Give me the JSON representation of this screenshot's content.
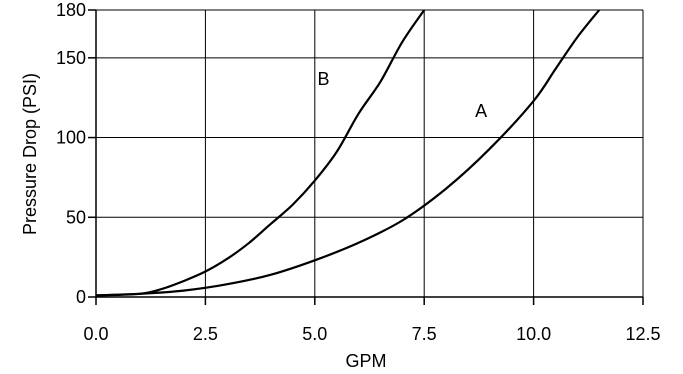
{
  "chart_data": {
    "type": "line",
    "xlabel": "GPM",
    "ylabel": "Pressure Drop (PSI)",
    "xlim": [
      0,
      12.5
    ],
    "ylim": [
      0,
      180
    ],
    "x_ticks": [
      "0.0",
      "2.5",
      "5.0",
      "7.5",
      "10.0",
      "12.5"
    ],
    "y_ticks": [
      "0",
      "50",
      "100",
      "150",
      "180"
    ],
    "grid": true,
    "series": [
      {
        "name": "A",
        "x": [
          0,
          1,
          2,
          3,
          4,
          5,
          6,
          7,
          8,
          9,
          10,
          10.5,
          11,
          11.5
        ],
        "y": [
          1,
          2,
          4,
          8,
          14,
          23,
          34,
          48,
          68,
          93,
          123,
          143,
          163,
          180
        ]
      },
      {
        "name": "B",
        "x": [
          0,
          1,
          1.5,
          2,
          2.5,
          3,
          3.5,
          4,
          4.5,
          5,
          5.5,
          6,
          6.5,
          7,
          7.5
        ],
        "y": [
          1,
          2,
          5,
          10,
          16,
          24,
          34,
          46,
          58,
          73,
          91,
          115,
          135,
          160,
          180
        ]
      }
    ]
  }
}
